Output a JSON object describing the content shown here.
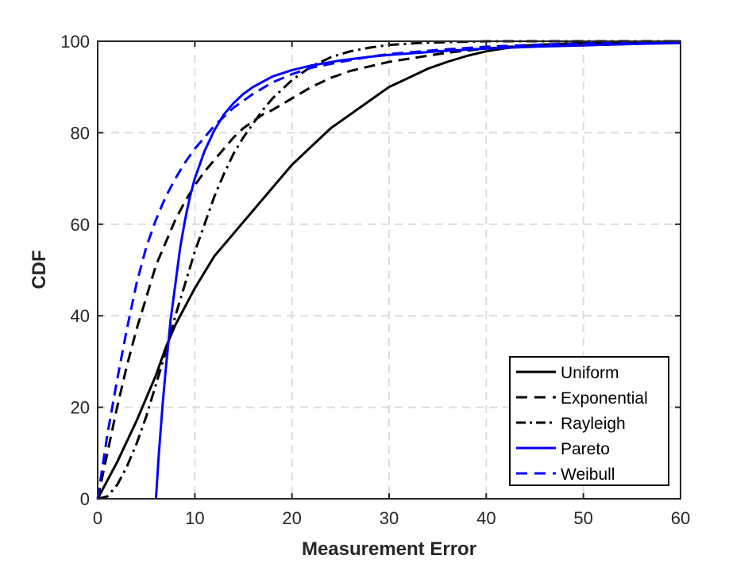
{
  "chart_data": {
    "type": "line",
    "title": "",
    "xlabel": "Measurement Error",
    "ylabel": "CDF",
    "xlim": [
      0,
      60
    ],
    "ylim": [
      0,
      100
    ],
    "xticks": [
      0,
      10,
      20,
      30,
      40,
      50,
      60
    ],
    "yticks": [
      0,
      20,
      40,
      60,
      80,
      100
    ],
    "grid": true,
    "legend_position": "bottom-right",
    "series": [
      {
        "name": "Uniform",
        "color": "#000000",
        "dash": "solid",
        "points": [
          [
            0,
            0
          ],
          [
            2,
            8
          ],
          [
            4,
            17
          ],
          [
            6,
            27
          ],
          [
            7,
            33
          ],
          [
            8,
            38
          ],
          [
            10,
            46
          ],
          [
            12,
            53
          ],
          [
            14,
            58
          ],
          [
            16,
            63
          ],
          [
            18,
            68
          ],
          [
            20,
            73
          ],
          [
            22,
            77
          ],
          [
            24,
            81
          ],
          [
            26,
            84
          ],
          [
            28,
            87
          ],
          [
            30,
            90
          ],
          [
            32,
            92
          ],
          [
            34,
            94
          ],
          [
            36,
            95.5
          ],
          [
            38,
            96.8
          ],
          [
            40,
            97.8
          ],
          [
            42,
            98.5
          ],
          [
            45,
            99.2
          ],
          [
            50,
            99.6
          ],
          [
            55,
            99.8
          ],
          [
            60,
            100
          ]
        ]
      },
      {
        "name": "Exponential",
        "color": "#000000",
        "dash": "dashed",
        "points": [
          [
            0,
            0
          ],
          [
            1,
            10
          ],
          [
            2,
            20
          ],
          [
            3,
            29
          ],
          [
            4,
            37
          ],
          [
            5,
            44
          ],
          [
            6,
            51
          ],
          [
            7,
            56
          ],
          [
            8,
            61
          ],
          [
            9,
            65
          ],
          [
            10,
            68.5
          ],
          [
            11,
            71.5
          ],
          [
            12,
            74
          ],
          [
            13,
            76.5
          ],
          [
            14,
            79
          ],
          [
            15,
            81
          ],
          [
            16,
            82.5
          ],
          [
            17,
            84
          ],
          [
            18,
            85
          ],
          [
            20,
            87.5
          ],
          [
            22,
            90
          ],
          [
            24,
            92
          ],
          [
            26,
            93.5
          ],
          [
            28,
            94.5
          ],
          [
            30,
            95.5
          ],
          [
            33,
            96.5
          ],
          [
            36,
            97.5
          ],
          [
            40,
            98.4
          ],
          [
            45,
            99.2
          ],
          [
            50,
            99.6
          ],
          [
            55,
            99.8
          ],
          [
            60,
            100
          ]
        ]
      },
      {
        "name": "Rayleigh",
        "color": "#000000",
        "dash": "dashdot",
        "points": [
          [
            0,
            0
          ],
          [
            1,
            0.5
          ],
          [
            2,
            3
          ],
          [
            3,
            7
          ],
          [
            4,
            12
          ],
          [
            5,
            18
          ],
          [
            6,
            25
          ],
          [
            7,
            32
          ],
          [
            8,
            40
          ],
          [
            9,
            47
          ],
          [
            10,
            54
          ],
          [
            11,
            60
          ],
          [
            12,
            66
          ],
          [
            13,
            71
          ],
          [
            14,
            75.5
          ],
          [
            15,
            79
          ],
          [
            16,
            82
          ],
          [
            17,
            85
          ],
          [
            18,
            87.5
          ],
          [
            20,
            91.5
          ],
          [
            22,
            94.5
          ],
          [
            24,
            96.5
          ],
          [
            26,
            97.8
          ],
          [
            28,
            98.6
          ],
          [
            30,
            99.2
          ],
          [
            33,
            99.6
          ],
          [
            36,
            99.8
          ],
          [
            40,
            100
          ],
          [
            50,
            100
          ],
          [
            60,
            100
          ]
        ]
      },
      {
        "name": "Pareto",
        "color": "#0000ff",
        "dash": "solid",
        "points": [
          [
            6,
            0
          ],
          [
            6.3,
            10
          ],
          [
            6.7,
            21
          ],
          [
            7,
            28
          ],
          [
            7.5,
            39
          ],
          [
            8,
            47
          ],
          [
            8.5,
            55
          ],
          [
            9,
            61
          ],
          [
            9.5,
            66
          ],
          [
            10,
            70
          ],
          [
            11,
            76
          ],
          [
            12,
            80.5
          ],
          [
            13,
            84
          ],
          [
            14,
            86.5
          ],
          [
            15,
            88.5
          ],
          [
            16,
            90
          ],
          [
            18,
            92.3
          ],
          [
            20,
            93.7
          ],
          [
            22,
            94.7
          ],
          [
            25,
            95.8
          ],
          [
            28,
            96.6
          ],
          [
            30,
            97
          ],
          [
            35,
            97.8
          ],
          [
            40,
            98.4
          ],
          [
            45,
            98.8
          ],
          [
            50,
            99.1
          ],
          [
            55,
            99.4
          ],
          [
            60,
            99.6
          ]
        ]
      },
      {
        "name": "Weibull",
        "color": "#0000ff",
        "dash": "dashed",
        "points": [
          [
            0,
            0
          ],
          [
            0.5,
            7
          ],
          [
            1,
            14
          ],
          [
            2,
            26
          ],
          [
            3,
            37
          ],
          [
            4,
            47
          ],
          [
            5,
            55
          ],
          [
            6,
            61
          ],
          [
            7,
            66
          ],
          [
            8,
            70
          ],
          [
            9,
            73.5
          ],
          [
            10,
            76.5
          ],
          [
            11,
            79
          ],
          [
            12,
            81.5
          ],
          [
            13,
            83.5
          ],
          [
            14,
            85.5
          ],
          [
            16,
            88.5
          ],
          [
            18,
            91
          ],
          [
            20,
            92.8
          ],
          [
            22,
            94.2
          ],
          [
            25,
            95.5
          ],
          [
            28,
            96.6
          ],
          [
            30,
            97.2
          ],
          [
            35,
            98.1
          ],
          [
            40,
            98.8
          ],
          [
            45,
            99.2
          ],
          [
            50,
            99.5
          ],
          [
            55,
            99.7
          ],
          [
            60,
            100
          ]
        ]
      }
    ]
  }
}
